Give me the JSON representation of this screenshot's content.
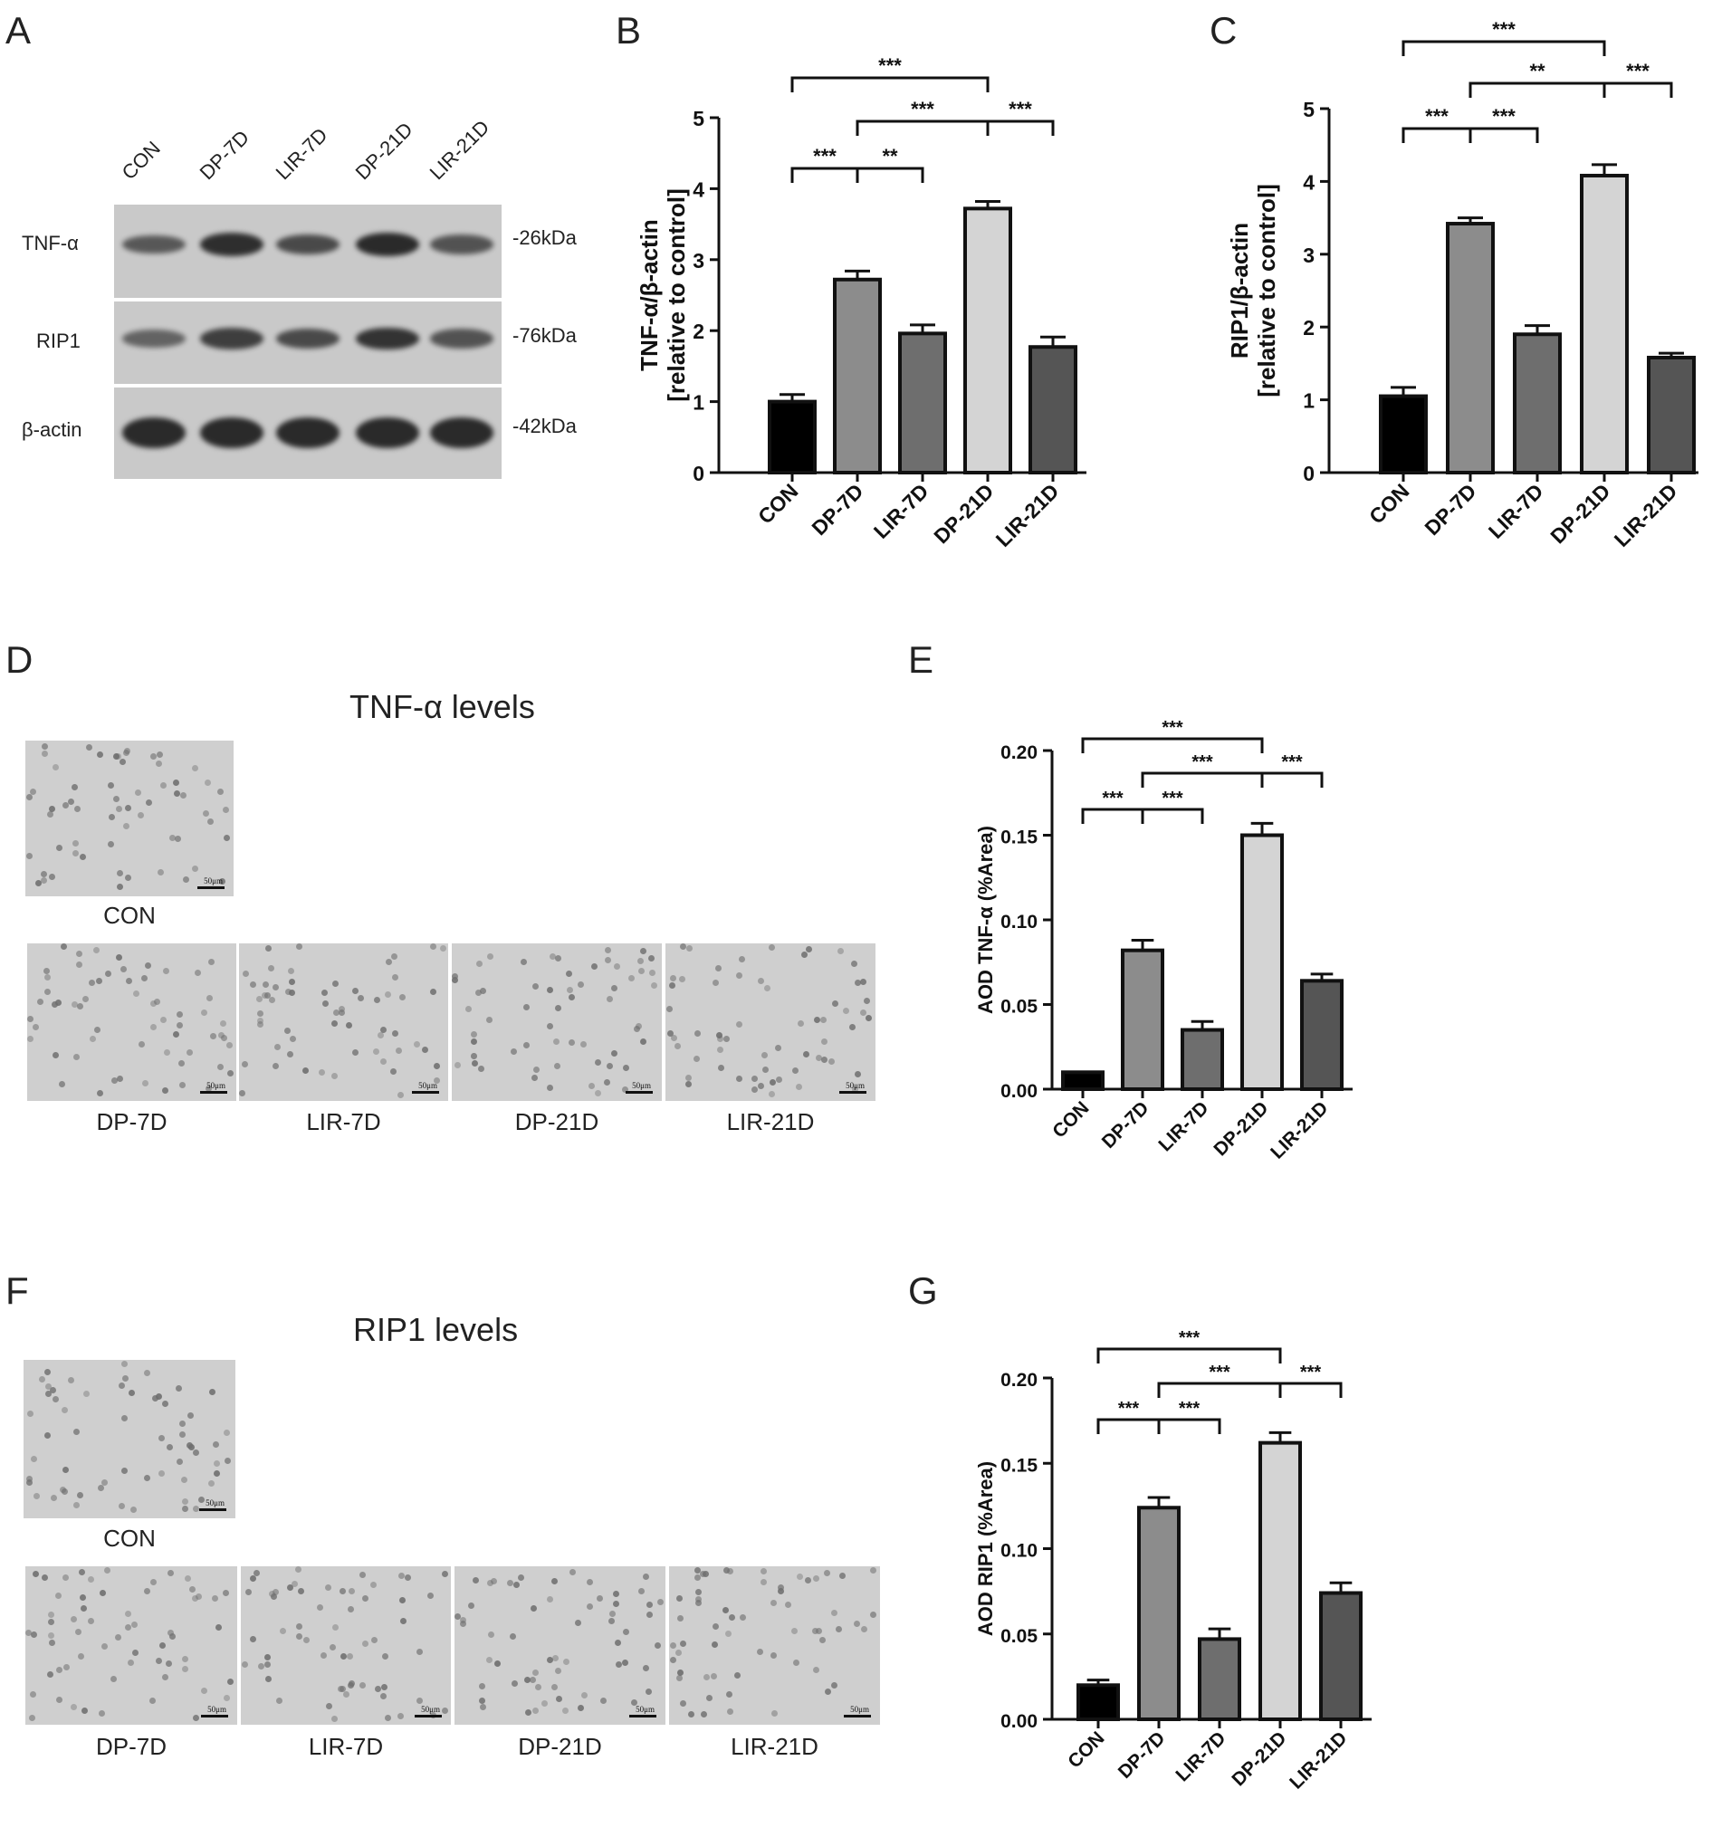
{
  "panels": {
    "A": "A",
    "B": "B",
    "C": "C",
    "D": "D",
    "E": "E",
    "F": "F",
    "G": "G"
  },
  "blot": {
    "lanes": [
      "CON",
      "DP-7D",
      "LIR-7D",
      "DP-21D",
      "LIR-21D"
    ],
    "rows": [
      {
        "protein": "TNF-α",
        "kda": "-26kDa",
        "intensities": [
          0.55,
          0.95,
          0.7,
          1.0,
          0.6
        ]
      },
      {
        "protein": "RIP1",
        "kda": "-76kDa",
        "intensities": [
          0.45,
          0.8,
          0.7,
          0.9,
          0.6
        ]
      },
      {
        "protein": "β-actin",
        "kda": "-42kDa",
        "intensities": [
          1.0,
          1.0,
          1.0,
          1.0,
          1.0
        ]
      }
    ]
  },
  "ihc_tnf": {
    "title": "TNF-α levels",
    "captions": [
      "CON",
      "DP-7D",
      "LIR-7D",
      "DP-21D",
      "LIR-21D"
    ],
    "scale": "50μm"
  },
  "ihc_rip1": {
    "title": "RIP1 levels",
    "captions": [
      "CON",
      "DP-7D",
      "LIR-7D",
      "DP-21D",
      "LIR-21D"
    ],
    "scale": "50μm"
  },
  "chart_data": [
    {
      "id": "B",
      "type": "bar",
      "categories": [
        "CON",
        "DP-7D",
        "LIR-7D",
        "DP-21D",
        "LIR-21D"
      ],
      "values": [
        1.0,
        2.72,
        1.96,
        3.72,
        1.77
      ],
      "errors": [
        0.1,
        0.12,
        0.12,
        0.1,
        0.14
      ],
      "ylabel_line1": "TNF-α/β-actin",
      "ylabel_line2": "[relative to control]",
      "ylim": [
        0,
        5
      ],
      "yticks": [
        "0",
        "1",
        "2",
        "3",
        "4",
        "5"
      ],
      "colors": [
        "#000000",
        "#8c8c8c",
        "#6e6e6e",
        "#d4d4d4",
        "#555555"
      ],
      "significance": [
        {
          "from": 0,
          "to": 3,
          "label": "***"
        },
        {
          "from": 1,
          "to": 3,
          "label": "***"
        },
        {
          "from": 3,
          "to": 4,
          "label": "***"
        },
        {
          "from": 0,
          "to": 1,
          "label": "***"
        },
        {
          "from": 1,
          "to": 2,
          "label": "**"
        }
      ]
    },
    {
      "id": "C",
      "type": "bar",
      "categories": [
        "CON",
        "DP-7D",
        "LIR-7D",
        "DP-21D",
        "LIR-21D"
      ],
      "values": [
        1.05,
        3.42,
        1.9,
        4.08,
        1.58
      ],
      "errors": [
        0.12,
        0.08,
        0.12,
        0.15,
        0.06
      ],
      "ylabel_line1": "RIP1/β-actin",
      "ylabel_line2": "[relative to control]",
      "ylim": [
        0,
        5
      ],
      "yticks": [
        "0",
        "1",
        "2",
        "3",
        "4",
        "5"
      ],
      "colors": [
        "#000000",
        "#8c8c8c",
        "#6e6e6e",
        "#d4d4d4",
        "#555555"
      ],
      "significance": [
        {
          "from": 0,
          "to": 3,
          "label": "***"
        },
        {
          "from": 1,
          "to": 3,
          "label": "**"
        },
        {
          "from": 3,
          "to": 4,
          "label": "***"
        },
        {
          "from": 0,
          "to": 1,
          "label": "***"
        },
        {
          "from": 1,
          "to": 2,
          "label": "***"
        }
      ]
    },
    {
      "id": "E",
      "type": "bar",
      "categories": [
        "CON",
        "DP-7D",
        "LIR-7D",
        "DP-21D",
        "LIR-21D"
      ],
      "values": [
        0.01,
        0.082,
        0.035,
        0.15,
        0.064
      ],
      "errors": [
        0.0,
        0.006,
        0.005,
        0.007,
        0.004
      ],
      "ylabel_line1": "AOD TNF-α (%Area)",
      "ylabel_line2": "",
      "ylim": [
        0,
        0.2
      ],
      "yticks": [
        "0.00",
        "0.05",
        "0.10",
        "0.15",
        "0.20"
      ],
      "colors": [
        "#000000",
        "#8c8c8c",
        "#6e6e6e",
        "#d4d4d4",
        "#555555"
      ],
      "significance": [
        {
          "from": 0,
          "to": 3,
          "label": "***"
        },
        {
          "from": 1,
          "to": 3,
          "label": "***"
        },
        {
          "from": 3,
          "to": 4,
          "label": "***"
        },
        {
          "from": 0,
          "to": 1,
          "label": "***"
        },
        {
          "from": 1,
          "to": 2,
          "label": "***"
        }
      ]
    },
    {
      "id": "G",
      "type": "bar",
      "categories": [
        "CON",
        "DP-7D",
        "LIR-7D",
        "DP-21D",
        "LIR-21D"
      ],
      "values": [
        0.02,
        0.124,
        0.047,
        0.162,
        0.074
      ],
      "errors": [
        0.003,
        0.006,
        0.006,
        0.006,
        0.006
      ],
      "ylabel_line1": "AOD RIP1 (%Area)",
      "ylabel_line2": "",
      "ylim": [
        0,
        0.2
      ],
      "yticks": [
        "0.00",
        "0.05",
        "0.10",
        "0.15",
        "0.20"
      ],
      "colors": [
        "#000000",
        "#8c8c8c",
        "#6e6e6e",
        "#d4d4d4",
        "#555555"
      ],
      "significance": [
        {
          "from": 0,
          "to": 3,
          "label": "***"
        },
        {
          "from": 1,
          "to": 3,
          "label": "***"
        },
        {
          "from": 3,
          "to": 4,
          "label": "***"
        },
        {
          "from": 0,
          "to": 1,
          "label": "***"
        },
        {
          "from": 1,
          "to": 2,
          "label": "***"
        }
      ]
    }
  ]
}
